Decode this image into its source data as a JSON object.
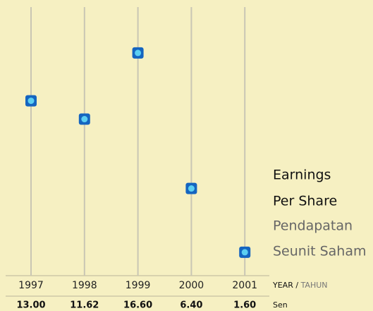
{
  "chart_data": {
    "type": "dot",
    "title": [
      "Earnings",
      "Per Share"
    ],
    "subtitle": [
      "Pendapatan",
      "Seunit Saham"
    ],
    "categories": [
      "1997",
      "1998",
      "1999",
      "2000",
      "2001"
    ],
    "values": [
      13.0,
      11.62,
      16.6,
      6.4,
      1.6
    ],
    "value_labels": [
      "13.00",
      "11.62",
      "16.60",
      "6.40",
      "1.60"
    ],
    "category_axis_label": {
      "main": "YEAR",
      "separator": "/",
      "alt": "TAHUN"
    },
    "unit_label": "Sen",
    "color": "#1565c0",
    "inner_color": "#5ccff2"
  }
}
